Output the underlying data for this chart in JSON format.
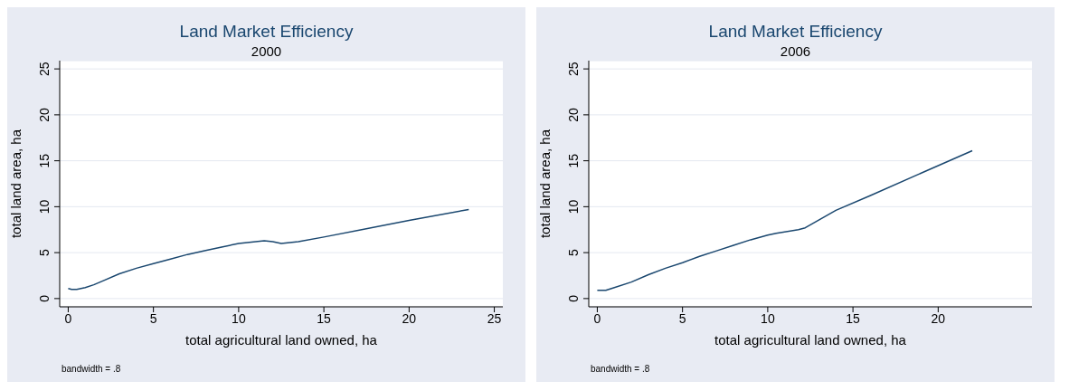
{
  "chart_data": [
    {
      "type": "line",
      "title": "Land Market Efficiency",
      "subtitle": "2000",
      "xlabel": "total agricultural land owned, ha",
      "ylabel": "total land area, ha",
      "annotations": [
        "bandwidth = .8"
      ],
      "xlim": [
        -0.5,
        25.5
      ],
      "ylim": [
        -0.9,
        25.9
      ],
      "xticks": [
        0,
        5,
        10,
        15,
        20,
        25
      ],
      "yticks": [
        0,
        5,
        10,
        15,
        20,
        25
      ],
      "grid": "y",
      "marker": "none",
      "line_style": "solid",
      "series": [
        {
          "color": "#1a476f",
          "x": [
            0,
            0.2,
            0.5,
            1,
            1.5,
            2,
            3,
            4,
            5,
            6,
            7,
            8,
            9,
            10,
            11,
            11.5,
            12,
            12.5,
            13.5,
            15,
            20,
            23.5
          ],
          "values": [
            1.1,
            1.0,
            1.0,
            1.2,
            1.5,
            1.9,
            2.7,
            3.3,
            3.8,
            4.3,
            4.8,
            5.2,
            5.6,
            6.0,
            6.2,
            6.3,
            6.2,
            6.0,
            6.2,
            6.7,
            8.5,
            9.7
          ]
        }
      ]
    },
    {
      "type": "line",
      "title": "Land Market Efficiency",
      "subtitle": "2006",
      "xlabel": "total agricultural land owned, ha",
      "ylabel": "total land area, ha",
      "annotations": [
        "bandwidth = .8"
      ],
      "xlim": [
        -0.5,
        25.5
      ],
      "ylim": [
        -0.9,
        25.9
      ],
      "xticks": [
        0,
        5,
        10,
        15,
        20
      ],
      "yticks": [
        0,
        5,
        10,
        15,
        20,
        25
      ],
      "grid": "y",
      "marker": "none",
      "line_style": "solid",
      "series": [
        {
          "color": "#1a476f",
          "x": [
            0,
            0.5,
            1,
            2,
            3,
            4,
            5,
            6,
            7,
            8,
            9,
            10,
            10.5,
            11.8,
            12.2,
            14,
            16,
            22
          ],
          "values": [
            0.9,
            0.9,
            1.2,
            1.8,
            2.6,
            3.3,
            3.9,
            4.6,
            5.2,
            5.8,
            6.4,
            6.9,
            7.1,
            7.5,
            7.7,
            9.6,
            11.2,
            16.1
          ]
        }
      ]
    }
  ]
}
